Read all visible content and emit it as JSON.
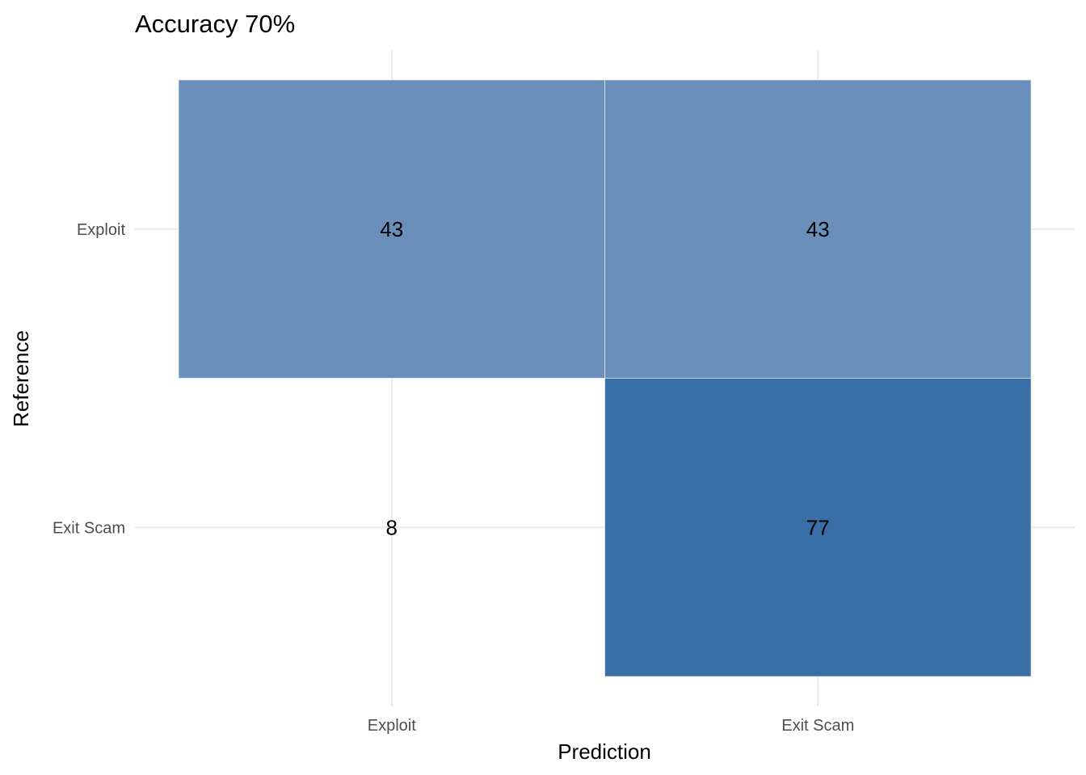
{
  "chart_data": {
    "type": "heatmap",
    "title": "Accuracy 70%",
    "xlabel": "Prediction",
    "ylabel": "Reference",
    "x_categories": [
      "Exploit",
      "Exit Scam"
    ],
    "y_categories": [
      "Exploit",
      "Exit Scam"
    ],
    "cells": [
      {
        "prediction": "Exploit",
        "reference": "Exploit",
        "value": 43
      },
      {
        "prediction": "Exit Scam",
        "reference": "Exploit",
        "value": 43
      },
      {
        "prediction": "Exploit",
        "reference": "Exit Scam",
        "value": 8
      },
      {
        "prediction": "Exit Scam",
        "reference": "Exit Scam",
        "value": 77
      }
    ],
    "colors": {
      "high": "#3a6ea7",
      "mid": "#6a8fbb",
      "low": "#ffffff",
      "grid": "#ebebeb",
      "text": "#000000",
      "tick_text": "#4d4d4d"
    },
    "grid": true
  }
}
